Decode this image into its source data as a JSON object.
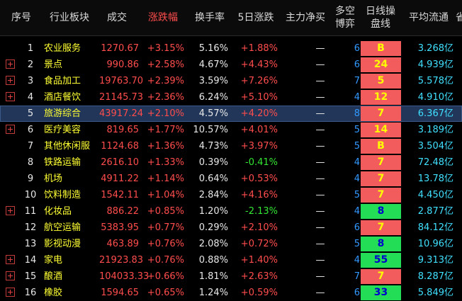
{
  "header": {
    "cols": [
      "序号",
      "行业板块",
      "成交",
      "涨跌幅",
      "换手率",
      "5日涨跌",
      "主力净买",
      "多空\n博弈",
      "日线操\n盘线",
      "平均流通",
      "省"
    ],
    "active_col": "涨跌幅"
  },
  "rows": [
    {
      "idx": "1",
      "plus": false,
      "name": "农业服务",
      "vol": "1270.67",
      "chg": "+3.15%",
      "turn": "5.16%",
      "d5": "+1.88%",
      "d5c": "red",
      "net": "—",
      "bs": "6",
      "sig": "B",
      "sigc": "red",
      "flow": "3.268亿",
      "sel": false
    },
    {
      "idx": "2",
      "plus": true,
      "name": "景点",
      "vol": "990.86",
      "chg": "+2.58%",
      "turn": "4.67%",
      "d5": "+4.43%",
      "d5c": "red",
      "net": "—",
      "bs": "6",
      "sig": "24",
      "sigc": "red",
      "flow": "4.939亿",
      "sel": false
    },
    {
      "idx": "3",
      "plus": true,
      "name": "食品加工",
      "vol": "19763.70",
      "chg": "+2.39%",
      "turn": "3.59%",
      "d5": "+7.26%",
      "d5c": "red",
      "net": "—",
      "bs": "7",
      "sig": "5",
      "sigc": "red",
      "flow": "5.578亿",
      "sel": false
    },
    {
      "idx": "4",
      "plus": true,
      "name": "酒店餐饮",
      "vol": "21145.73",
      "chg": "+2.36%",
      "turn": "6.24%",
      "d5": "+5.10%",
      "d5c": "red",
      "net": "—",
      "bs": "4",
      "sig": "12",
      "sigc": "red",
      "flow": "4.910亿",
      "sel": false
    },
    {
      "idx": "5",
      "plus": false,
      "name": "旅游综合",
      "vol": "43917.24",
      "chg": "+2.10%",
      "turn": "4.57%",
      "d5": "+4.20%",
      "d5c": "red",
      "net": "—",
      "bs": "8",
      "sig": "7",
      "sigc": "red",
      "flow": "6.367亿",
      "sel": true
    },
    {
      "idx": "6",
      "plus": true,
      "name": "医疗美容",
      "vol": "819.65",
      "chg": "+1.77%",
      "turn": "10.57%",
      "d5": "+4.01%",
      "d5c": "red",
      "net": "—",
      "bs": "5",
      "sig": "14",
      "sigc": "red",
      "flow": "3.189亿",
      "sel": false
    },
    {
      "idx": "7",
      "plus": false,
      "name": "其他休闲服",
      "vol": "1124.68",
      "chg": "+1.36%",
      "turn": "4.73%",
      "d5": "+3.97%",
      "d5c": "red",
      "net": "—",
      "bs": "5",
      "sig": "B",
      "sigc": "red",
      "flow": "3.504亿",
      "sel": false
    },
    {
      "idx": "8",
      "plus": false,
      "name": "铁路运输",
      "vol": "2616.10",
      "chg": "+1.33%",
      "turn": "0.39%",
      "d5": "-0.41%",
      "d5c": "green",
      "net": "—",
      "bs": "4",
      "sig": "7",
      "sigc": "red",
      "flow": "72.48亿",
      "sel": false
    },
    {
      "idx": "9",
      "plus": false,
      "name": "机场",
      "vol": "4911.22",
      "chg": "+1.14%",
      "turn": "0.64%",
      "d5": "+0.53%",
      "d5c": "red",
      "net": "—",
      "bs": "4",
      "sig": "7",
      "sigc": "red",
      "flow": "13.78亿",
      "sel": false
    },
    {
      "idx": "10",
      "plus": false,
      "name": "饮料制造",
      "vol": "1542.11",
      "chg": "+1.04%",
      "turn": "2.84%",
      "d5": "+4.16%",
      "d5c": "red",
      "net": "—",
      "bs": "5",
      "sig": "7",
      "sigc": "red",
      "flow": "4.450亿",
      "sel": false
    },
    {
      "idx": "11",
      "plus": true,
      "name": "化妆品",
      "vol": "886.22",
      "chg": "+0.85%",
      "turn": "1.20%",
      "d5": "-2.13%",
      "d5c": "green",
      "net": "—",
      "bs": "4",
      "sig": "8",
      "sigc": "green",
      "flow": "2.877亿",
      "sel": false
    },
    {
      "idx": "12",
      "plus": false,
      "name": "航空运输",
      "vol": "5383.95",
      "chg": "+0.77%",
      "turn": "0.29%",
      "d5": "+2.10%",
      "d5c": "red",
      "net": "—",
      "bs": "6",
      "sig": "7",
      "sigc": "red",
      "flow": "84.12亿",
      "sel": false
    },
    {
      "idx": "13",
      "plus": false,
      "name": "影视动漫",
      "vol": "463.89",
      "chg": "+0.76%",
      "turn": "2.08%",
      "d5": "+0.72%",
      "d5c": "red",
      "net": "—",
      "bs": "5",
      "sig": "8",
      "sigc": "green",
      "flow": "10.96亿",
      "sel": false
    },
    {
      "idx": "14",
      "plus": true,
      "name": "家电",
      "vol": "21923.83",
      "chg": "+0.76%",
      "turn": "0.88%",
      "d5": "+1.40%",
      "d5c": "red",
      "net": "—",
      "bs": "4",
      "sig": "55",
      "sigc": "green",
      "flow": "9.313亿",
      "sel": false
    },
    {
      "idx": "15",
      "plus": true,
      "name": "酿酒",
      "vol": "104033.33",
      "chg": "+0.66%",
      "turn": "1.81%",
      "d5": "+2.63%",
      "d5c": "red",
      "net": "—",
      "bs": "7",
      "sig": "7",
      "sigc": "red",
      "flow": "8.287亿",
      "sel": false
    },
    {
      "idx": "16",
      "plus": true,
      "name": "橡胶",
      "vol": "1594.65",
      "chg": "+0.65%",
      "turn": "1.24%",
      "d5": "+0.59%",
      "d5c": "red",
      "net": "—",
      "bs": "6",
      "sig": "33",
      "sigc": "green",
      "flow": "5.849亿",
      "sel": false
    }
  ]
}
